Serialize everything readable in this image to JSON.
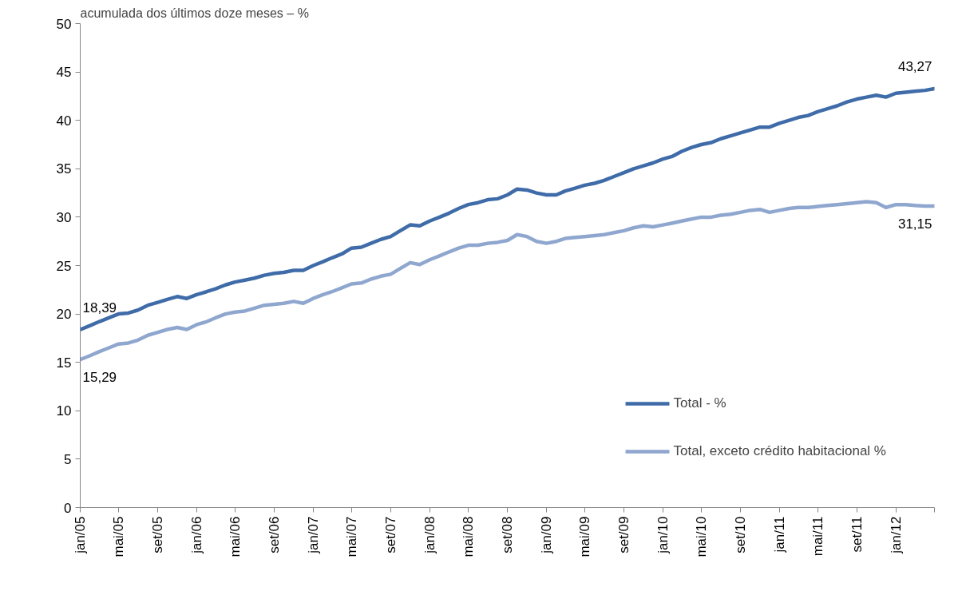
{
  "chart_data": {
    "type": "line",
    "title": "acumulada dos últimos doze meses – %",
    "x": [
      "2005-01",
      "2005-02",
      "2005-03",
      "2005-04",
      "2005-05",
      "2005-06",
      "2005-07",
      "2005-08",
      "2005-09",
      "2005-10",
      "2005-11",
      "2005-12",
      "2006-01",
      "2006-02",
      "2006-03",
      "2006-04",
      "2006-05",
      "2006-06",
      "2006-07",
      "2006-08",
      "2006-09",
      "2006-10",
      "2006-11",
      "2006-12",
      "2007-01",
      "2007-02",
      "2007-03",
      "2007-04",
      "2007-05",
      "2007-06",
      "2007-07",
      "2007-08",
      "2007-09",
      "2007-10",
      "2007-11",
      "2007-12",
      "2008-01",
      "2008-02",
      "2008-03",
      "2008-04",
      "2008-05",
      "2008-06",
      "2008-07",
      "2008-08",
      "2008-09",
      "2008-10",
      "2008-11",
      "2008-12",
      "2009-01",
      "2009-02",
      "2009-03",
      "2009-04",
      "2009-05",
      "2009-06",
      "2009-07",
      "2009-08",
      "2009-09",
      "2009-10",
      "2009-11",
      "2009-12",
      "2010-01",
      "2010-02",
      "2010-03",
      "2010-04",
      "2010-05",
      "2010-06",
      "2010-07",
      "2010-08",
      "2010-09",
      "2010-10",
      "2010-11",
      "2010-12",
      "2011-01",
      "2011-02",
      "2011-03",
      "2011-04",
      "2011-05",
      "2011-06",
      "2011-07",
      "2011-08",
      "2011-09",
      "2011-10",
      "2011-11",
      "2011-12",
      "2012-01",
      "2012-02",
      "2012-03",
      "2012-04",
      "2012-05"
    ],
    "series": [
      {
        "name": "Total - %",
        "color": "#3f6ca8",
        "values": [
          18.39,
          18.8,
          19.2,
          19.6,
          20.0,
          20.1,
          20.4,
          20.9,
          21.2,
          21.5,
          21.8,
          21.6,
          22.0,
          22.3,
          22.6,
          23.0,
          23.3,
          23.5,
          23.7,
          24.0,
          24.2,
          24.3,
          24.5,
          24.5,
          25.0,
          25.4,
          25.8,
          26.2,
          26.8,
          26.9,
          27.3,
          27.7,
          28.0,
          28.6,
          29.2,
          29.1,
          29.6,
          30.0,
          30.4,
          30.9,
          31.3,
          31.5,
          31.8,
          31.9,
          32.3,
          32.9,
          32.8,
          32.5,
          32.3,
          32.3,
          32.7,
          33.0,
          33.3,
          33.5,
          33.8,
          34.2,
          34.6,
          35.0,
          35.3,
          35.6,
          36.0,
          36.3,
          36.8,
          37.2,
          37.5,
          37.7,
          38.1,
          38.4,
          38.7,
          39.0,
          39.3,
          39.3,
          39.7,
          40.0,
          40.3,
          40.5,
          40.9,
          41.2,
          41.5,
          41.9,
          42.2,
          42.4,
          42.6,
          42.4,
          42.8,
          42.9,
          43.0,
          43.1,
          43.27
        ],
        "value_labels": [
          "18,39",
          null,
          null,
          null,
          null,
          null,
          null,
          null,
          null,
          null,
          null,
          null,
          null,
          null,
          null,
          null,
          null,
          null,
          null,
          null,
          null,
          null,
          null,
          null,
          null,
          null,
          null,
          null,
          null,
          null,
          null,
          null,
          null,
          null,
          null,
          null,
          null,
          null,
          null,
          null,
          null,
          null,
          null,
          null,
          null,
          null,
          null,
          null,
          null,
          null,
          null,
          null,
          null,
          null,
          null,
          null,
          null,
          null,
          null,
          null,
          null,
          null,
          null,
          null,
          null,
          null,
          null,
          null,
          null,
          null,
          null,
          null,
          null,
          null,
          null,
          null,
          null,
          null,
          null,
          null,
          null,
          null,
          null,
          null,
          null,
          null,
          null,
          null,
          "43,27"
        ]
      },
      {
        "name": "Total, exceto crédito habitacional %",
        "color": "#8fa7cf",
        "values": [
          15.29,
          15.7,
          16.1,
          16.5,
          16.9,
          17.0,
          17.3,
          17.8,
          18.1,
          18.4,
          18.6,
          18.4,
          18.9,
          19.2,
          19.6,
          20.0,
          20.2,
          20.3,
          20.6,
          20.9,
          21.0,
          21.1,
          21.3,
          21.1,
          21.6,
          22.0,
          22.3,
          22.7,
          23.1,
          23.2,
          23.6,
          23.9,
          24.1,
          24.7,
          25.3,
          25.1,
          25.6,
          26.0,
          26.4,
          26.8,
          27.1,
          27.1,
          27.3,
          27.4,
          27.6,
          28.2,
          28.0,
          27.5,
          27.3,
          27.5,
          27.8,
          27.9,
          28.0,
          28.1,
          28.2,
          28.4,
          28.6,
          28.9,
          29.1,
          29.0,
          29.2,
          29.4,
          29.6,
          29.8,
          30.0,
          30.0,
          30.2,
          30.3,
          30.5,
          30.7,
          30.8,
          30.5,
          30.7,
          30.9,
          31.0,
          31.0,
          31.1,
          31.2,
          31.3,
          31.4,
          31.5,
          31.6,
          31.5,
          31.0,
          31.3,
          31.3,
          31.2,
          31.15,
          31.15
        ],
        "value_labels": [
          "15,29",
          null,
          null,
          null,
          null,
          null,
          null,
          null,
          null,
          null,
          null,
          null,
          null,
          null,
          null,
          null,
          null,
          null,
          null,
          null,
          null,
          null,
          null,
          null,
          null,
          null,
          null,
          null,
          null,
          null,
          null,
          null,
          null,
          null,
          null,
          null,
          null,
          null,
          null,
          null,
          null,
          null,
          null,
          null,
          null,
          null,
          null,
          null,
          null,
          null,
          null,
          null,
          null,
          null,
          null,
          null,
          null,
          null,
          null,
          null,
          null,
          null,
          null,
          null,
          null,
          null,
          null,
          null,
          null,
          null,
          null,
          null,
          null,
          null,
          null,
          null,
          null,
          null,
          null,
          null,
          null,
          null,
          null,
          null,
          null,
          null,
          null,
          null,
          "31,15"
        ]
      }
    ],
    "xlim": [
      "2005-01",
      "2012-05"
    ],
    "xticks": [
      {
        "value": "2005-01",
        "label": "jan/05"
      },
      {
        "value": "2005-05",
        "label": "mai/05"
      },
      {
        "value": "2005-09",
        "label": "set/05"
      },
      {
        "value": "2006-01",
        "label": "jan/06"
      },
      {
        "value": "2006-05",
        "label": "mai/06"
      },
      {
        "value": "2006-09",
        "label": "set/06"
      },
      {
        "value": "2007-01",
        "label": "jan/07"
      },
      {
        "value": "2007-05",
        "label": "mai/07"
      },
      {
        "value": "2007-09",
        "label": "set/07"
      },
      {
        "value": "2008-01",
        "label": "jan/08"
      },
      {
        "value": "2008-05",
        "label": "mai/08"
      },
      {
        "value": "2008-09",
        "label": "set/08"
      },
      {
        "value": "2009-01",
        "label": "jan/09"
      },
      {
        "value": "2009-05",
        "label": "mai/09"
      },
      {
        "value": "2009-09",
        "label": "set/09"
      },
      {
        "value": "2010-01",
        "label": "jan/10"
      },
      {
        "value": "2010-05",
        "label": "mai/10"
      },
      {
        "value": "2010-09",
        "label": "set/10"
      },
      {
        "value": "2011-01",
        "label": "jan/11"
      },
      {
        "value": "2011-05",
        "label": "mai/11"
      },
      {
        "value": "2011-09",
        "label": "set/11"
      },
      {
        "value": "2012-01",
        "label": "jan/12"
      },
      {
        "value": "2012-05",
        "label": null
      }
    ],
    "ylim": [
      0,
      50
    ],
    "yticks": [
      0,
      5,
      10,
      15,
      20,
      25,
      30,
      35,
      40,
      45,
      50
    ],
    "grid": false,
    "legend": "bottom right",
    "line_style": "solid"
  }
}
